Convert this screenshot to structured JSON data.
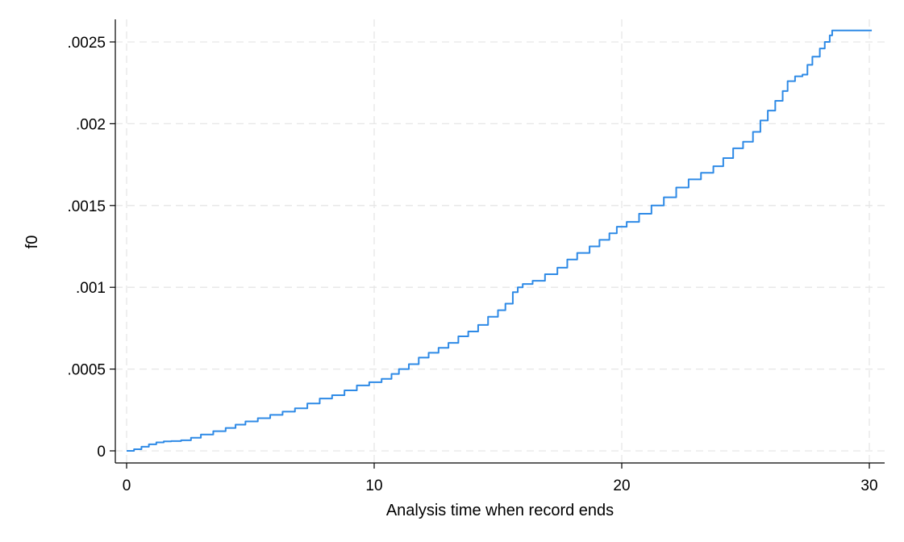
{
  "chart_data": {
    "type": "line",
    "title": "",
    "xlabel": "Analysis time when record ends",
    "ylabel": "f0",
    "xlim": [
      0,
      30.6
    ],
    "ylim": [
      0,
      0.00262
    ],
    "x_ticks": [
      0,
      10,
      20,
      30
    ],
    "x_tick_labels": [
      "0",
      "10",
      "20",
      "30"
    ],
    "y_ticks": [
      0,
      0.0005,
      0.001,
      0.0015,
      0.002,
      0.0025
    ],
    "y_tick_labels": [
      "0",
      ".0005",
      ".001",
      ".0015",
      ".002",
      ".0025"
    ],
    "grid": true,
    "legend": "none",
    "line_color": "#2e8ae6",
    "step": true,
    "series": [
      {
        "x": [
          0,
          0.3,
          0.6,
          0.9,
          1.2,
          1.5,
          1.8,
          2.2,
          2.6,
          3.0,
          3.5,
          4.0,
          4.4,
          4.8,
          5.3,
          5.8,
          6.3,
          6.8,
          7.3,
          7.8,
          8.3,
          8.8,
          9.3,
          9.8,
          10.3,
          10.7,
          11.0,
          11.4,
          11.8,
          12.2,
          12.6,
          13.0,
          13.4,
          13.8,
          14.2,
          14.6,
          15.0,
          15.3,
          15.6,
          15.8,
          16.0,
          16.4,
          16.9,
          17.4,
          17.8,
          18.2,
          18.7,
          19.1,
          19.5,
          19.8,
          20.2,
          20.7,
          21.2,
          21.7,
          22.2,
          22.7,
          23.2,
          23.7,
          24.1,
          24.5,
          24.9,
          25.3,
          25.6,
          25.9,
          26.2,
          26.5,
          26.7,
          27.0,
          27.3,
          27.5,
          27.7,
          28.0,
          28.2,
          28.4,
          28.5,
          29.0,
          29.6,
          30.1
        ],
        "y": [
          0,
          1e-05,
          2.5e-05,
          4e-05,
          5.2e-05,
          5.8e-05,
          6e-05,
          6.5e-05,
          8e-05,
          0.0001,
          0.00012,
          0.00014,
          0.00016,
          0.00018,
          0.0002,
          0.00022,
          0.00024,
          0.00026,
          0.00029,
          0.00032,
          0.00034,
          0.00037,
          0.0004,
          0.00042,
          0.00044,
          0.00047,
          0.0005,
          0.00053,
          0.00057,
          0.0006,
          0.00063,
          0.00066,
          0.0007,
          0.00073,
          0.00077,
          0.00082,
          0.00086,
          0.0009,
          0.00097,
          0.001,
          0.00102,
          0.00104,
          0.00108,
          0.00112,
          0.00117,
          0.00121,
          0.00125,
          0.00129,
          0.00133,
          0.00137,
          0.0014,
          0.00145,
          0.0015,
          0.00155,
          0.00161,
          0.00166,
          0.0017,
          0.00174,
          0.00179,
          0.00185,
          0.00189,
          0.00195,
          0.00202,
          0.00208,
          0.00214,
          0.0022,
          0.00226,
          0.00229,
          0.0023,
          0.00236,
          0.00241,
          0.00246,
          0.0025,
          0.00254,
          0.00257,
          0.00257,
          0.00257,
          0.00257
        ]
      }
    ]
  }
}
